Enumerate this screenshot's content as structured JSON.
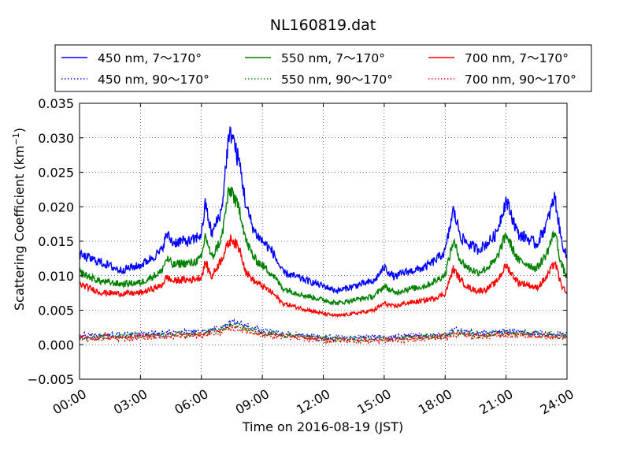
{
  "chart_data": {
    "type": "line",
    "title": "NL160819.dat",
    "xlabel": "Time on 2016-08-19 (JST)",
    "ylabel_main": "Scattering Coefficient (km",
    "ylabel_exp": "−1",
    "ylabel_close": ")",
    "xlim_hours": [
      0,
      24
    ],
    "ylim": [
      -0.005,
      0.035
    ],
    "x_ticks": [
      {
        "h": 0,
        "label": "00:00"
      },
      {
        "h": 3,
        "label": "03:00"
      },
      {
        "h": 6,
        "label": "06:00"
      },
      {
        "h": 9,
        "label": "09:00"
      },
      {
        "h": 12,
        "label": "12:00"
      },
      {
        "h": 15,
        "label": "15:00"
      },
      {
        "h": 18,
        "label": "18:00"
      },
      {
        "h": 21,
        "label": "21:00"
      },
      {
        "h": 24,
        "label": "24:00"
      }
    ],
    "y_ticks": [
      {
        "v": -0.005,
        "label": "−0.005"
      },
      {
        "v": 0.0,
        "label": "0.000"
      },
      {
        "v": 0.005,
        "label": "0.005"
      },
      {
        "v": 0.01,
        "label": "0.010"
      },
      {
        "v": 0.015,
        "label": "0.015"
      },
      {
        "v": 0.02,
        "label": "0.020"
      },
      {
        "v": 0.025,
        "label": "0.025"
      },
      {
        "v": 0.03,
        "label": "0.030"
      },
      {
        "v": 0.035,
        "label": "0.035"
      }
    ],
    "grid": true,
    "legend_position": "top",
    "series": [
      {
        "name": "450 nm, 7～170°",
        "color": "#0000ff",
        "style": "solid",
        "x": [
          0,
          0.5,
          1,
          2,
          3,
          4,
          4.3,
          4.6,
          5,
          5.5,
          6,
          6.2,
          6.5,
          7,
          7.3,
          7.5,
          7.7,
          7.9,
          8.2,
          8.6,
          9,
          9.5,
          10,
          11,
          12,
          12.7,
          13.5,
          14.5,
          15,
          15.5,
          16,
          16.5,
          17,
          17.5,
          18,
          18.4,
          18.8,
          19.2,
          19.6,
          20,
          20.5,
          21,
          21.3,
          21.6,
          22,
          22.5,
          23,
          23.4,
          23.7,
          24
        ],
        "y": [
          0.013,
          0.0125,
          0.012,
          0.0108,
          0.0115,
          0.0135,
          0.016,
          0.0148,
          0.015,
          0.015,
          0.016,
          0.0205,
          0.016,
          0.0195,
          0.029,
          0.031,
          0.028,
          0.026,
          0.02,
          0.0165,
          0.015,
          0.0135,
          0.0105,
          0.0095,
          0.0085,
          0.0078,
          0.0085,
          0.0092,
          0.0112,
          0.0098,
          0.0105,
          0.0108,
          0.0112,
          0.0122,
          0.0135,
          0.0195,
          0.0155,
          0.0145,
          0.0138,
          0.0145,
          0.016,
          0.021,
          0.0185,
          0.016,
          0.0155,
          0.0145,
          0.0175,
          0.0215,
          0.0155,
          0.0125
        ]
      },
      {
        "name": "550 nm, 7～170°",
        "color": "#008000",
        "style": "solid",
        "x": [
          0,
          0.5,
          1,
          2,
          3,
          4,
          4.3,
          4.6,
          5,
          5.5,
          6,
          6.2,
          6.5,
          7,
          7.3,
          7.5,
          7.7,
          7.9,
          8.2,
          8.6,
          9,
          9.5,
          10,
          11,
          12,
          12.7,
          13.5,
          14.5,
          15,
          15.5,
          16,
          16.5,
          17,
          17.5,
          18,
          18.4,
          18.8,
          19.2,
          19.6,
          20,
          20.5,
          21,
          21.3,
          21.6,
          22,
          22.5,
          23,
          23.4,
          23.7,
          24
        ],
        "y": [
          0.0105,
          0.0098,
          0.0092,
          0.0088,
          0.009,
          0.0105,
          0.0125,
          0.0115,
          0.0118,
          0.0118,
          0.0125,
          0.016,
          0.0125,
          0.0155,
          0.0215,
          0.0225,
          0.0205,
          0.0195,
          0.015,
          0.0125,
          0.0115,
          0.0102,
          0.0082,
          0.0072,
          0.0065,
          0.006,
          0.0065,
          0.007,
          0.0085,
          0.0075,
          0.008,
          0.0082,
          0.0085,
          0.0092,
          0.0102,
          0.015,
          0.012,
          0.011,
          0.0105,
          0.011,
          0.0122,
          0.016,
          0.014,
          0.0122,
          0.0118,
          0.011,
          0.0132,
          0.0165,
          0.0118,
          0.0097
        ]
      },
      {
        "name": "700 nm, 7～170°",
        "color": "#ff0000",
        "style": "solid",
        "x": [
          0,
          0.5,
          1,
          2,
          3,
          4,
          4.3,
          4.6,
          5,
          5.5,
          6,
          6.2,
          6.5,
          7,
          7.3,
          7.5,
          7.7,
          7.9,
          8.2,
          8.6,
          9,
          9.5,
          10,
          11,
          12,
          12.7,
          13.5,
          14.5,
          15,
          15.5,
          16,
          16.5,
          17,
          17.5,
          18,
          18.4,
          18.8,
          19.2,
          19.6,
          20,
          20.5,
          21,
          21.3,
          21.6,
          22,
          22.5,
          23,
          23.4,
          23.7,
          24
        ],
        "y": [
          0.0088,
          0.0082,
          0.0076,
          0.0074,
          0.0075,
          0.0085,
          0.0098,
          0.0092,
          0.0094,
          0.0094,
          0.0098,
          0.012,
          0.0098,
          0.0125,
          0.0145,
          0.0155,
          0.0145,
          0.0138,
          0.0105,
          0.0092,
          0.0085,
          0.0075,
          0.006,
          0.0052,
          0.0045,
          0.0042,
          0.0045,
          0.005,
          0.006,
          0.0055,
          0.006,
          0.0062,
          0.0064,
          0.0068,
          0.0074,
          0.011,
          0.0092,
          0.0082,
          0.0078,
          0.008,
          0.009,
          0.0115,
          0.0102,
          0.009,
          0.0088,
          0.0082,
          0.0098,
          0.012,
          0.0088,
          0.0072
        ]
      },
      {
        "name": "450 nm, 90～170°",
        "color": "#0000ff",
        "style": "dotted",
        "x": [
          0,
          2,
          4,
          6,
          6.5,
          7,
          7.5,
          8,
          8.5,
          9,
          10,
          12,
          14,
          16,
          18,
          18.5,
          19,
          20,
          21,
          22,
          23,
          24
        ],
        "y": [
          0.0013,
          0.0014,
          0.0016,
          0.0018,
          0.0022,
          0.0025,
          0.0032,
          0.003,
          0.0024,
          0.002,
          0.0016,
          0.0011,
          0.001,
          0.0012,
          0.0015,
          0.0021,
          0.0018,
          0.0016,
          0.002,
          0.0018,
          0.0016,
          0.0014
        ]
      },
      {
        "name": "550 nm, 90～170°",
        "color": "#008000",
        "style": "dotted",
        "x": [
          0,
          2,
          4,
          6,
          6.5,
          7,
          7.5,
          8,
          8.5,
          9,
          10,
          12,
          14,
          16,
          18,
          18.5,
          19,
          20,
          21,
          22,
          23,
          24
        ],
        "y": [
          0.0011,
          0.0012,
          0.0014,
          0.0016,
          0.002,
          0.0022,
          0.0028,
          0.0026,
          0.0021,
          0.0017,
          0.0014,
          0.0009,
          0.0008,
          0.001,
          0.0013,
          0.0018,
          0.0016,
          0.0014,
          0.0017,
          0.0015,
          0.0014,
          0.0012
        ]
      },
      {
        "name": "700 nm, 90～170°",
        "color": "#ff0000",
        "style": "dotted",
        "x": [
          0,
          2,
          4,
          6,
          6.5,
          7,
          7.5,
          8,
          8.5,
          9,
          10,
          12,
          14,
          16,
          18,
          18.5,
          19,
          20,
          21,
          22,
          23,
          24
        ],
        "y": [
          0.0009,
          0.001,
          0.0012,
          0.0014,
          0.0017,
          0.0019,
          0.0024,
          0.0022,
          0.0018,
          0.0015,
          0.0012,
          0.0007,
          0.0006,
          0.0008,
          0.0011,
          0.0016,
          0.0014,
          0.0012,
          0.0015,
          0.0013,
          0.0012,
          0.001
        ]
      }
    ]
  }
}
